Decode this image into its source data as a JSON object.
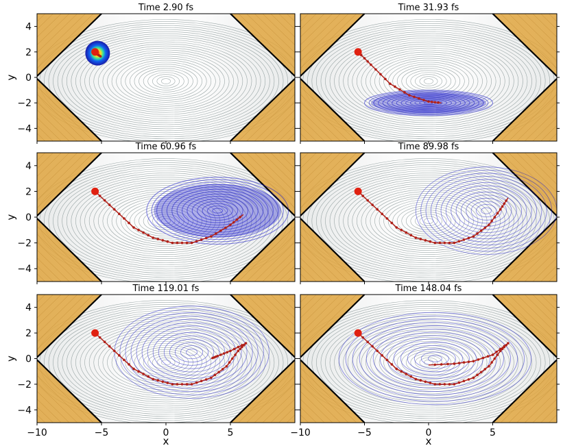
{
  "chart_data": {
    "type": "contour",
    "layout": "3 rows x 2 columns of panels",
    "xlabel": "x",
    "ylabel": "y",
    "xlim": [
      -10,
      10
    ],
    "ylim": [
      -5,
      5
    ],
    "xticks": [
      -10,
      -5,
      0,
      5
    ],
    "yticks": [
      -4,
      -2,
      0,
      2,
      4
    ],
    "x_tick_labels": [
      "−10",
      "−5",
      "0",
      "5"
    ],
    "y_tick_labels": [
      "−4",
      "−2",
      "0",
      "2",
      "4"
    ],
    "title_prefix": "Time",
    "colors": {
      "wall": "#e0a640",
      "potential_contour": "#7a8a8a",
      "wavepacket_contour": "#1d1dcc",
      "trajectory": "#b02018",
      "start_point": "#e02010"
    },
    "start_point": [
      -5.5,
      2.0
    ],
    "panels": [
      {
        "time_label": "2.90 fs",
        "packet_center": [
          -5.3,
          1.9
        ],
        "trajectory": [
          [
            -5.5,
            2.0
          ],
          [
            -5.3,
            1.8
          ],
          [
            -5.0,
            1.6
          ]
        ]
      },
      {
        "time_label": "31.93 fs",
        "packet_center": [
          0.0,
          -2.0
        ],
        "trajectory": [
          [
            -5.5,
            2.0
          ],
          [
            -4.5,
            1.0
          ],
          [
            -3.0,
            -0.5
          ],
          [
            -1.5,
            -1.4
          ],
          [
            0.0,
            -1.9
          ],
          [
            1.0,
            -2.0
          ]
        ]
      },
      {
        "time_label": "60.96 fs",
        "packet_center": [
          4.0,
          0.5
        ],
        "trajectory": [
          [
            -5.5,
            2.0
          ],
          [
            -4.0,
            0.6
          ],
          [
            -2.5,
            -0.8
          ],
          [
            -1.0,
            -1.6
          ],
          [
            0.5,
            -2.0
          ],
          [
            2.0,
            -2.0
          ],
          [
            3.5,
            -1.5
          ],
          [
            5.0,
            -0.6
          ],
          [
            6.0,
            0.2
          ]
        ]
      },
      {
        "time_label": "89.98 fs",
        "packet_center": [
          4.5,
          0.5
        ],
        "trajectory": [
          [
            -5.5,
            2.0
          ],
          [
            -4.0,
            0.6
          ],
          [
            -2.5,
            -0.8
          ],
          [
            -1.0,
            -1.6
          ],
          [
            0.5,
            -2.0
          ],
          [
            2.0,
            -2.0
          ],
          [
            3.5,
            -1.5
          ],
          [
            4.7,
            -0.6
          ],
          [
            5.6,
            0.6
          ],
          [
            6.2,
            1.5
          ]
        ]
      },
      {
        "time_label": "119.01 fs",
        "packet_center": [
          2.0,
          0.5
        ],
        "trajectory": [
          [
            -5.5,
            2.0
          ],
          [
            -4.0,
            0.6
          ],
          [
            -2.5,
            -0.8
          ],
          [
            -1.0,
            -1.6
          ],
          [
            0.5,
            -2.0
          ],
          [
            2.0,
            -2.0
          ],
          [
            3.5,
            -1.5
          ],
          [
            4.7,
            -0.6
          ],
          [
            5.6,
            0.6
          ],
          [
            6.2,
            1.2
          ],
          [
            5.0,
            0.6
          ],
          [
            4.0,
            0.2
          ],
          [
            3.5,
            0.0
          ]
        ]
      },
      {
        "time_label": "148.04 fs",
        "packet_center": [
          0.5,
          0.0
        ],
        "trajectory": [
          [
            -5.5,
            2.0
          ],
          [
            -4.0,
            0.6
          ],
          [
            -2.5,
            -0.8
          ],
          [
            -1.0,
            -1.6
          ],
          [
            0.5,
            -2.0
          ],
          [
            2.0,
            -2.0
          ],
          [
            3.5,
            -1.5
          ],
          [
            4.7,
            -0.6
          ],
          [
            5.6,
            0.6
          ],
          [
            6.2,
            1.2
          ],
          [
            5.0,
            0.3
          ],
          [
            3.5,
            -0.2
          ],
          [
            2.0,
            -0.4
          ],
          [
            0.0,
            -0.5
          ]
        ]
      }
    ]
  }
}
